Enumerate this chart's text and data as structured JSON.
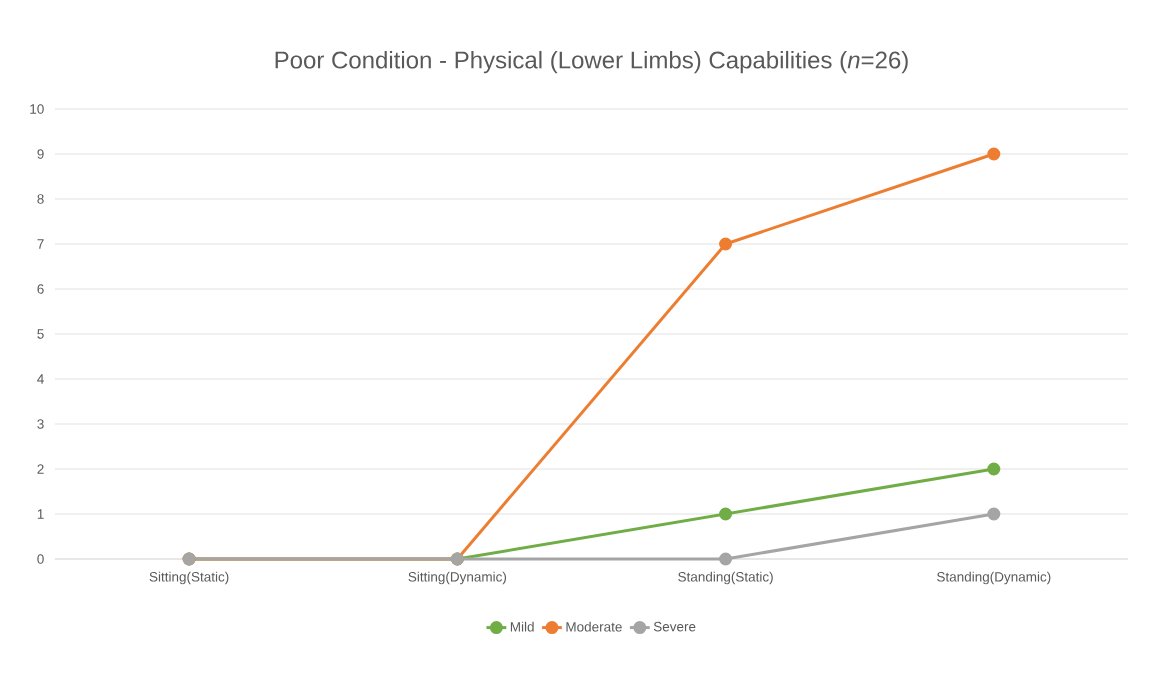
{
  "chart_data": {
    "type": "line",
    "title": "Poor Condition - Physical (Lower Limbs) Capabilities (*n*=26)",
    "categories": [
      "Sitting(Static)",
      "Sitting(Dynamic)",
      "Standing(Static)",
      "Standing(Dynamic)"
    ],
    "series": [
      {
        "name": "Mild",
        "color": "#70ad47",
        "values": [
          0,
          0,
          1,
          2
        ]
      },
      {
        "name": "Moderate",
        "color": "#ed7d31",
        "values": [
          0,
          0,
          7,
          9
        ]
      },
      {
        "name": "Severe",
        "color": "#a5a5a5",
        "values": [
          0,
          0,
          0,
          1
        ]
      }
    ],
    "ylim": [
      0,
      10
    ],
    "yticks": [
      0,
      1,
      2,
      3,
      4,
      5,
      6,
      7,
      8,
      9,
      10
    ],
    "grid": "y",
    "legend": "bottom",
    "marker": "circle",
    "line_style": "solid"
  }
}
